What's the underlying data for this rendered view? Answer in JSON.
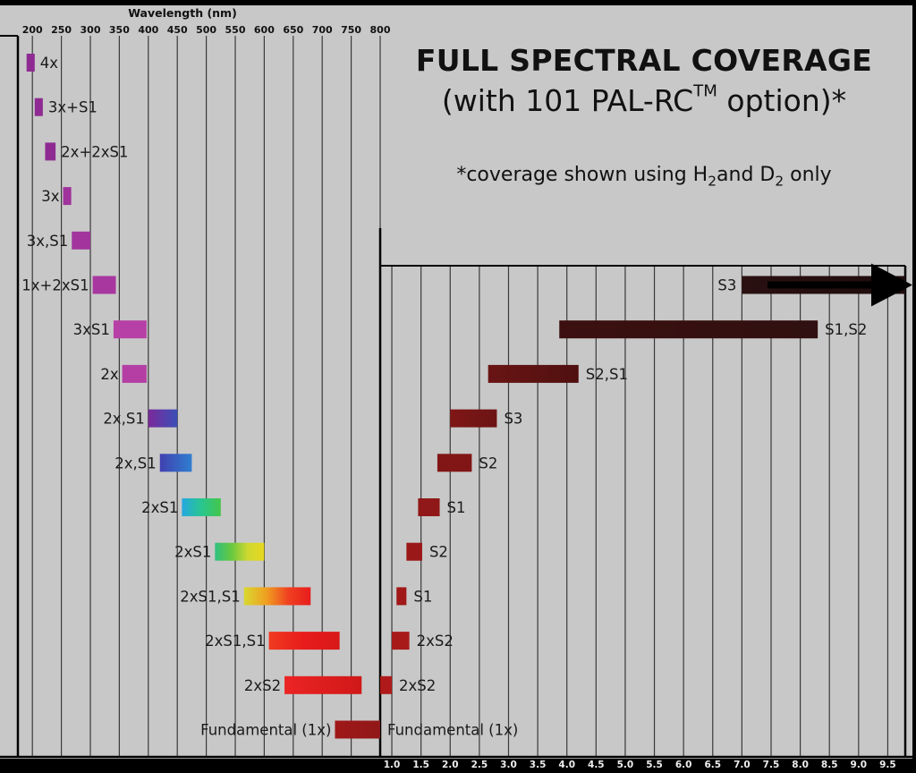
{
  "title": "FULL SPECTRAL COVERAGE",
  "subtitle": {
    "before": "(with 101 PAL-RC",
    "tm": "TM",
    "after": " option)*"
  },
  "note": {
    "part1": "*coverage shown using H",
    "sub1": "2",
    "part2": "and D",
    "sub2": "2",
    "part3": " only"
  },
  "colors": {
    "background": "#c8c8c8",
    "frame": "#000000",
    "gridline": "#3a3a3a"
  },
  "chart_data": [
    {
      "type": "bar",
      "subtype": "horizontal-range",
      "panel": "left",
      "xlabel": "Wavelength (nm)",
      "xaxis_position": "top",
      "xticks": [
        200,
        250,
        300,
        350,
        400,
        450,
        500,
        550,
        600,
        650,
        700,
        750,
        800
      ],
      "xlim": [
        175,
        800
      ],
      "grid": true,
      "bars": [
        {
          "label": "4x",
          "range": [
            190,
            204
          ],
          "color": "#8e2a92"
        },
        {
          "label": "3x+S1",
          "range": [
            204,
            218
          ],
          "color": "#8e2a92"
        },
        {
          "label": "2x+2xS1",
          "range": [
            222,
            240
          ],
          "color": "#8e2a92"
        },
        {
          "label": "3x",
          "range": [
            253,
            267
          ],
          "color": "#a0329c"
        },
        {
          "label": "3x,S1",
          "range": [
            268,
            300
          ],
          "color": "#a3349e"
        },
        {
          "label": "1x+2xS1",
          "range": [
            304,
            344
          ],
          "color": "#a8379f"
        },
        {
          "label": "3xS1",
          "range": [
            340,
            397
          ],
          "color": "#b640a6"
        },
        {
          "label": "2x",
          "range": [
            355,
            397
          ],
          "color": "#b43ea4"
        },
        {
          "label": "2x,S1",
          "range": [
            400,
            450
          ],
          "gradient": [
            "#7b2a9a",
            "#3a4fb8"
          ]
        },
        {
          "label": "2x,S1",
          "range": [
            420,
            475
          ],
          "gradient": [
            "#4040b0",
            "#2f7fd0"
          ]
        },
        {
          "label": "2xS1",
          "range": [
            458,
            525
          ],
          "gradient": [
            "#26a7e0",
            "#28c690",
            "#45c64a"
          ]
        },
        {
          "label": "2xS1",
          "range": [
            515,
            600
          ],
          "gradient": [
            "#30c080",
            "#66c840",
            "#cfd830",
            "#e8d820"
          ]
        },
        {
          "label": "2xS1,S1",
          "range": [
            565,
            680
          ],
          "gradient": [
            "#d8d830",
            "#f0a020",
            "#f04020",
            "#e81c1c"
          ]
        },
        {
          "label": "2xS1,S1",
          "range": [
            608,
            730
          ],
          "gradient": [
            "#f03a20",
            "#e81c1c",
            "#d81818"
          ]
        },
        {
          "label": "2xS2",
          "range": [
            635,
            768
          ],
          "gradient": [
            "#ec2424",
            "#d01818"
          ]
        },
        {
          "label": "Fundamental (1x)",
          "range": [
            722,
            800
          ],
          "gradient": [
            "#a01818",
            "#901818"
          ]
        }
      ]
    },
    {
      "type": "bar",
      "subtype": "horizontal-range",
      "panel": "right",
      "xlabel": "",
      "xaxis_position": "bottom",
      "xticks": [
        1.0,
        1.5,
        2.0,
        2.5,
        3.0,
        3.5,
        4.0,
        4.5,
        5.0,
        5.5,
        6.0,
        6.5,
        7.0,
        7.5,
        8.0,
        8.5,
        9.0,
        9.5
      ],
      "xtick_labels": [
        "1.0",
        "1.5",
        "2.0",
        "2.5",
        "3.0",
        "3.5",
        "4.0",
        "4.5",
        "5.0",
        "5.5",
        "6.0",
        "6.5",
        "7.0",
        "7.5",
        "8.0",
        "8.5",
        "9.0",
        "9.5"
      ],
      "xlim": [
        0.8,
        9.8
      ],
      "grid": true,
      "bars": [
        {
          "label": "S3",
          "range": [
            7.0,
            9.8
          ],
          "gradient": [
            "#2a1010",
            "#1e0c0c"
          ],
          "arrow": true
        },
        {
          "label": "S1,S2",
          "range": [
            3.87,
            8.3
          ],
          "gradient": [
            "#3c1010",
            "#301010"
          ]
        },
        {
          "label": "S2,S1",
          "range": [
            2.65,
            4.2
          ],
          "gradient": [
            "#6a1414",
            "#501010"
          ]
        },
        {
          "label": "S3",
          "range": [
            2.0,
            2.8
          ],
          "gradient": [
            "#801616",
            "#6c1414"
          ]
        },
        {
          "label": "S2",
          "range": [
            1.78,
            2.37
          ],
          "color": "#821616"
        },
        {
          "label": "S1",
          "range": [
            1.45,
            1.82
          ],
          "color": "#901818"
        },
        {
          "label": "S2",
          "range": [
            1.25,
            1.52
          ],
          "color": "#9a1818"
        },
        {
          "label": "S1",
          "range": [
            1.08,
            1.25
          ],
          "color": "#a01818"
        },
        {
          "label": "2xS2",
          "range": [
            1.0,
            1.3
          ],
          "color": "#a81a1a"
        },
        {
          "label": "2xS2",
          "range": [
            0.8,
            1.0
          ],
          "color": "#b01a1a"
        },
        {
          "label": "Fundamental (1x)",
          "range": [
            0.8,
            0.8
          ],
          "color": "#901818"
        }
      ]
    }
  ]
}
